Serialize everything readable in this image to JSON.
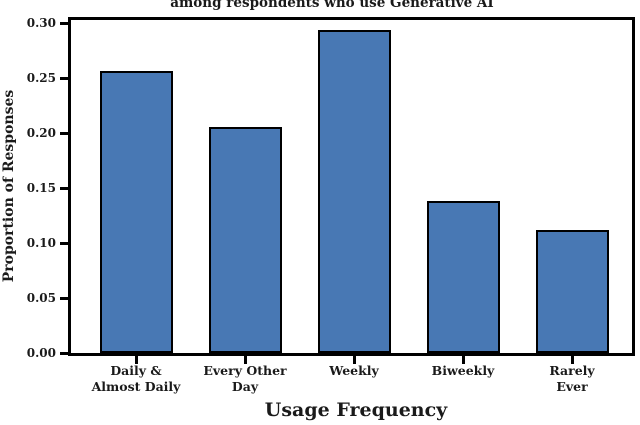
{
  "chart_data": {
    "type": "bar",
    "title": "among respondents who use Generative AI",
    "title_note": "title line partially cut off at top edge of screenshot",
    "xlabel": "Usage Frequency",
    "ylabel": "Proportion of Responses",
    "categories": [
      "Daily &\nAlmost Daily",
      "Every Other\nDay",
      "Weekly",
      "Biweekly",
      "Rarely Ever"
    ],
    "values": [
      0.256,
      0.205,
      0.294,
      0.138,
      0.112
    ],
    "ytick_labels": [
      "0.00",
      "0.05",
      "0.10",
      "0.15",
      "0.20",
      "0.25",
      "0.30"
    ],
    "yticks": [
      0.0,
      0.05,
      0.1,
      0.15,
      0.2,
      0.25,
      0.3
    ],
    "ylim": [
      0,
      0.308
    ],
    "grid": false,
    "legend": false,
    "bar_color": "#4878b4",
    "bar_edge_color": "#000000",
    "axis_color": "#000000"
  }
}
